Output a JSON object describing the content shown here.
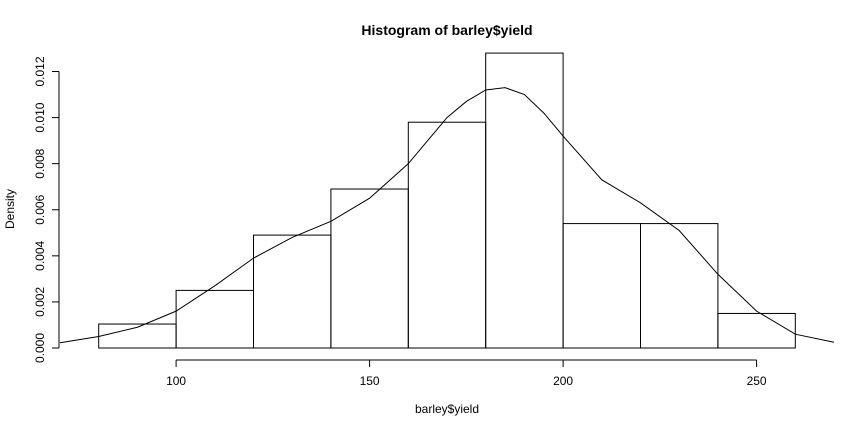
{
  "chart_data": {
    "type": "bar",
    "title": "Histogram of barley$yield",
    "xlabel": "barley$yield",
    "ylabel": "Density",
    "xlim": [
      70,
      270
    ],
    "ylim": [
      0,
      0.0125
    ],
    "x_ticks": [
      100,
      150,
      200,
      250
    ],
    "x_tick_labels": [
      "100",
      "150",
      "200",
      "250"
    ],
    "y_ticks": [
      0,
      0.002,
      0.004,
      0.006,
      0.008,
      0.01,
      0.012
    ],
    "y_tick_labels": [
      "0.000",
      "0.002",
      "0.004",
      "0.006",
      "0.008",
      "0.010",
      "0.012"
    ],
    "bins": [
      {
        "start": 80,
        "end": 100,
        "density": 0.00104
      },
      {
        "start": 100,
        "end": 120,
        "density": 0.0025
      },
      {
        "start": 120,
        "end": 140,
        "density": 0.0049
      },
      {
        "start": 140,
        "end": 160,
        "density": 0.0069
      },
      {
        "start": 160,
        "end": 180,
        "density": 0.0098
      },
      {
        "start": 180,
        "end": 200,
        "density": 0.0128
      },
      {
        "start": 200,
        "end": 220,
        "density": 0.0054
      },
      {
        "start": 220,
        "end": 240,
        "density": 0.0054
      },
      {
        "start": 240,
        "end": 260,
        "density": 0.0015
      }
    ],
    "density_curve": {
      "x": [
        70,
        80,
        90,
        100,
        110,
        120,
        130,
        140,
        150,
        160,
        170,
        175,
        180,
        185,
        190,
        195,
        200,
        210,
        220,
        230,
        240,
        250,
        260,
        270
      ],
      "y": [
        0.00023,
        0.0005,
        0.0009,
        0.0016,
        0.0027,
        0.0039,
        0.0048,
        0.0055,
        0.0065,
        0.008,
        0.01,
        0.0107,
        0.0112,
        0.0113,
        0.011,
        0.0102,
        0.0092,
        0.0073,
        0.0063,
        0.0051,
        0.0032,
        0.0016,
        0.0006,
        0.00025
      ]
    },
    "grid": false,
    "legend": "none"
  }
}
